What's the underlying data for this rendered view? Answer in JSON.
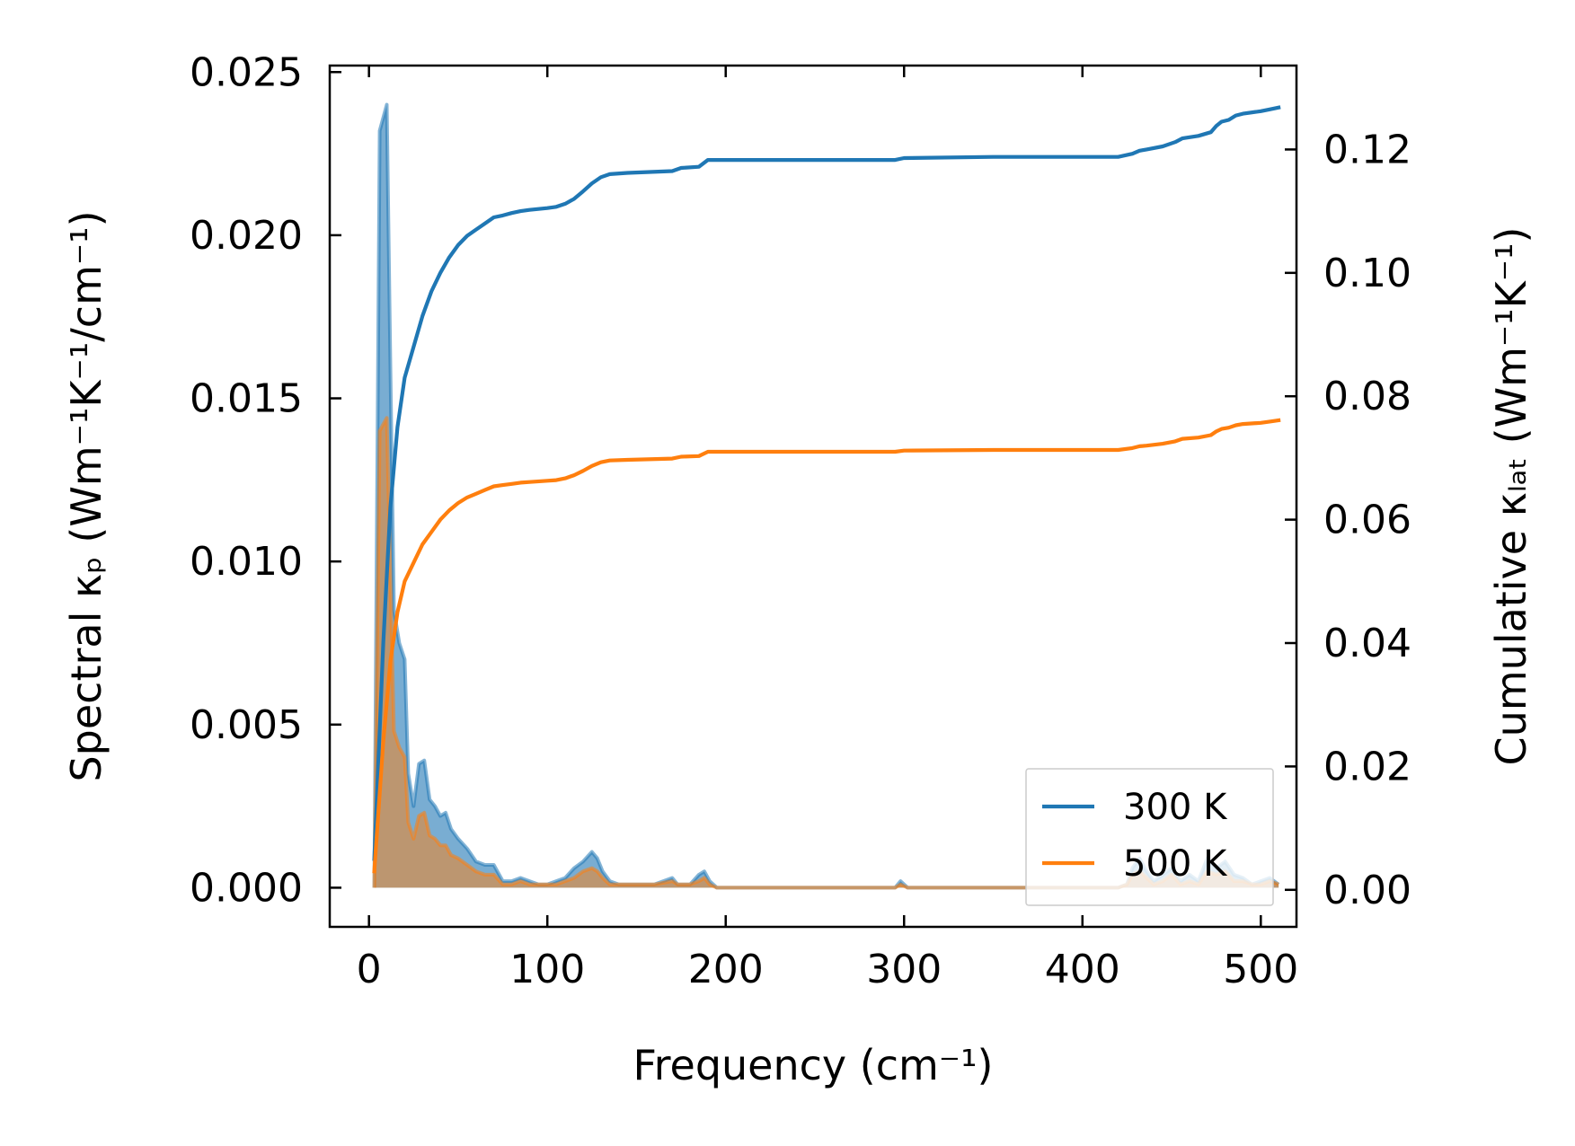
{
  "chart_data": {
    "type": "area",
    "xlabel": "Frequency (cm⁻¹)",
    "ylabel_left": "Spectral κₚ (Wm⁻¹K⁻¹/cm⁻¹)",
    "ylabel_right": "Cumulative κₗₐₜ (Wm⁻¹K⁻¹)",
    "xlim": [
      -22,
      520
    ],
    "ylim_left": [
      -0.0012,
      0.0252
    ],
    "ylim_right": [
      -0.006,
      0.1336
    ],
    "xticks": [
      0,
      100,
      200,
      300,
      400,
      500
    ],
    "yticks_left": [
      0.0,
      0.005,
      0.01,
      0.015,
      0.02,
      0.025
    ],
    "ytick_labels_left": [
      "0.000",
      "0.005",
      "0.010",
      "0.015",
      "0.020",
      "0.025"
    ],
    "yticks_right": [
      0.0,
      0.02,
      0.04,
      0.06,
      0.08,
      0.1,
      0.12
    ],
    "ytick_labels_right": [
      "0.00",
      "0.02",
      "0.04",
      "0.06",
      "0.08",
      "0.10",
      "0.12"
    ],
    "legend_position": "lower-right",
    "series": [
      {
        "name": "300 K",
        "color": "#1f77b4",
        "spectral": {
          "x": [
            3,
            6,
            10,
            12,
            14,
            17,
            20,
            22,
            25,
            28,
            31,
            34,
            37,
            40,
            43,
            46,
            50,
            55,
            60,
            65,
            70,
            75,
            80,
            85,
            90,
            95,
            100,
            105,
            110,
            115,
            120,
            125,
            128,
            131,
            135,
            140,
            145,
            150,
            160,
            170,
            173,
            176,
            180,
            185,
            188,
            191,
            195,
            200,
            220,
            250,
            280,
            295,
            298,
            302,
            310,
            330,
            350,
            380,
            400,
            420,
            425,
            428,
            432,
            436,
            440,
            445,
            450,
            455,
            460,
            465,
            470,
            475,
            480,
            485,
            490,
            495,
            500,
            505,
            510
          ],
          "y": [
            0.0,
            0.0232,
            0.024,
            0.016,
            0.0085,
            0.0075,
            0.007,
            0.0035,
            0.0025,
            0.0038,
            0.0039,
            0.0027,
            0.0025,
            0.0022,
            0.0023,
            0.0018,
            0.0015,
            0.0012,
            0.0008,
            0.0007,
            0.0007,
            0.0002,
            0.0002,
            0.0003,
            0.0002,
            0.0001,
            0.0001,
            0.0002,
            0.0003,
            0.0006,
            0.0008,
            0.0011,
            0.0009,
            0.0005,
            0.0002,
            0.0001,
            0.0001,
            0.0001,
            0.0001,
            0.0003,
            0.0001,
            0.0001,
            0.0001,
            0.0004,
            0.0005,
            0.0002,
            0.0,
            0.0,
            0.0,
            0.0,
            0.0,
            0.0,
            0.0002,
            0.0,
            0.0,
            0.0,
            0.0,
            0.0,
            0.0,
            0.0,
            0.0001,
            0.0006,
            0.0009,
            0.0005,
            0.0002,
            0.0004,
            0.0006,
            0.0002,
            0.0004,
            0.0002,
            0.0009,
            0.0006,
            0.0008,
            0.0004,
            0.0003,
            0.0001,
            0.0002,
            0.0003,
            0.0001
          ]
        },
        "cumulative": {
          "x": [
            3,
            8,
            12,
            16,
            20,
            25,
            30,
            35,
            40,
            45,
            50,
            55,
            60,
            65,
            70,
            75,
            80,
            85,
            90,
            100,
            105,
            110,
            115,
            120,
            125,
            130,
            135,
            145,
            170,
            175,
            185,
            190,
            250,
            295,
            300,
            350,
            420,
            428,
            432,
            436,
            445,
            452,
            456,
            465,
            472,
            475,
            478,
            482,
            486,
            490,
            500,
            505,
            510
          ],
          "y": [
            0.005,
            0.04,
            0.062,
            0.075,
            0.083,
            0.088,
            0.093,
            0.097,
            0.1,
            0.1025,
            0.1045,
            0.106,
            0.107,
            0.108,
            0.109,
            0.1093,
            0.1097,
            0.11,
            0.1102,
            0.1105,
            0.1107,
            0.1112,
            0.112,
            0.1132,
            0.1145,
            0.1155,
            0.116,
            0.1162,
            0.1165,
            0.117,
            0.1172,
            0.1183,
            0.1183,
            0.1183,
            0.1186,
            0.1188,
            0.1188,
            0.1193,
            0.1198,
            0.12,
            0.1205,
            0.1212,
            0.1218,
            0.1222,
            0.1228,
            0.1238,
            0.1245,
            0.1248,
            0.1255,
            0.1258,
            0.1262,
            0.1265,
            0.1268
          ]
        }
      },
      {
        "name": "500 K",
        "color": "#ff7f0e",
        "spectral": {
          "x": [
            3,
            6,
            10,
            12,
            14,
            17,
            20,
            22,
            25,
            28,
            31,
            34,
            37,
            40,
            43,
            46,
            50,
            55,
            60,
            65,
            70,
            75,
            80,
            85,
            90,
            95,
            100,
            105,
            110,
            115,
            120,
            125,
            128,
            131,
            135,
            140,
            145,
            150,
            160,
            170,
            173,
            176,
            180,
            185,
            188,
            191,
            195,
            200,
            220,
            250,
            280,
            295,
            298,
            302,
            310,
            330,
            350,
            380,
            400,
            420,
            425,
            428,
            432,
            436,
            440,
            445,
            450,
            455,
            460,
            465,
            470,
            475,
            480,
            485,
            490,
            495,
            500,
            505,
            510
          ],
          "y": [
            0.0,
            0.014,
            0.0144,
            0.0095,
            0.0048,
            0.0043,
            0.004,
            0.002,
            0.0015,
            0.0022,
            0.0023,
            0.0016,
            0.0015,
            0.0013,
            0.0013,
            0.001,
            0.0009,
            0.0007,
            0.0005,
            0.0004,
            0.0004,
            0.0001,
            0.0001,
            0.0002,
            0.0001,
            0.0001,
            0.0001,
            0.0001,
            0.0002,
            0.0003,
            0.0005,
            0.0006,
            0.0005,
            0.0003,
            0.0001,
            0.0001,
            0.0001,
            0.0001,
            0.0001,
            0.0002,
            0.0001,
            0.0001,
            0.0001,
            0.0002,
            0.0003,
            0.0001,
            0.0,
            0.0,
            0.0,
            0.0,
            0.0,
            0.0,
            0.0001,
            0.0,
            0.0,
            0.0,
            0.0,
            0.0,
            0.0,
            0.0,
            0.0001,
            0.0004,
            0.0005,
            0.0003,
            0.0001,
            0.0002,
            0.0004,
            0.0001,
            0.0002,
            0.0001,
            0.0005,
            0.0004,
            0.0005,
            0.0002,
            0.0002,
            0.0001,
            0.0001,
            0.0002,
            0.0001
          ]
        },
        "cumulative": {
          "x": [
            3,
            8,
            12,
            16,
            20,
            25,
            30,
            35,
            40,
            45,
            50,
            55,
            60,
            65,
            70,
            75,
            80,
            85,
            90,
            100,
            105,
            110,
            115,
            120,
            125,
            130,
            135,
            145,
            170,
            175,
            185,
            190,
            250,
            295,
            300,
            350,
            420,
            428,
            432,
            436,
            445,
            452,
            456,
            465,
            472,
            475,
            478,
            482,
            486,
            490,
            500,
            505,
            510
          ],
          "y": [
            0.003,
            0.024,
            0.037,
            0.045,
            0.05,
            0.053,
            0.056,
            0.058,
            0.06,
            0.0615,
            0.0627,
            0.0636,
            0.0642,
            0.0648,
            0.0654,
            0.0656,
            0.0658,
            0.066,
            0.0661,
            0.0663,
            0.0664,
            0.0667,
            0.0672,
            0.0679,
            0.0687,
            0.0693,
            0.0696,
            0.0697,
            0.0699,
            0.0702,
            0.0703,
            0.071,
            0.071,
            0.071,
            0.0712,
            0.0713,
            0.0713,
            0.0716,
            0.0719,
            0.072,
            0.0723,
            0.0727,
            0.0731,
            0.0733,
            0.0737,
            0.0743,
            0.0747,
            0.0749,
            0.0753,
            0.0755,
            0.0757,
            0.0759,
            0.0761
          ]
        }
      }
    ]
  }
}
